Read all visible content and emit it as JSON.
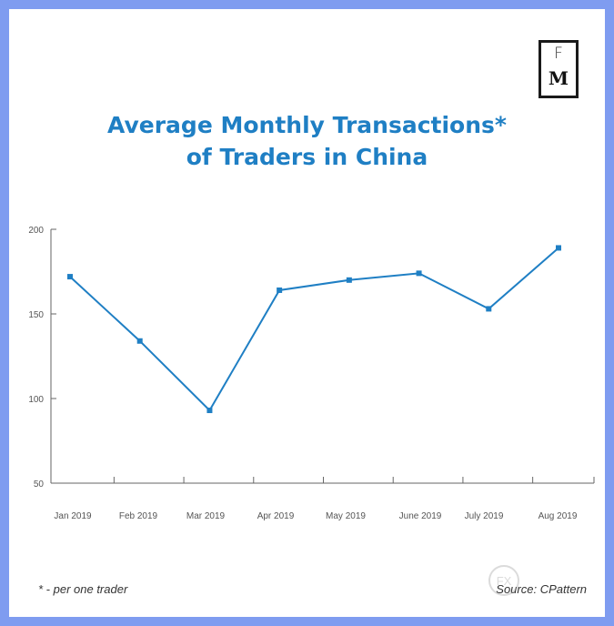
{
  "logo": {
    "top": "F",
    "bottom": "M"
  },
  "title_line1": "Average Monthly Transactions*",
  "title_line2": "of Traders in China",
  "footnote": "* - per one trader",
  "source": "Source: CPattern",
  "watermark": "FX",
  "colors": {
    "line": "#1f7fc4",
    "border": "#7f9cf0",
    "axis": "#666666"
  },
  "chart_data": {
    "type": "line",
    "title": "Average Monthly Transactions* of Traders in China",
    "categories": [
      "Jan 2019",
      "Feb 2019",
      "Mar 2019",
      "Apr 2019",
      "May 2019",
      "June 2019",
      "July 2019",
      "Aug 2019"
    ],
    "series": [
      {
        "values": [
          172,
          134,
          93,
          164,
          170,
          174,
          153,
          189
        ]
      }
    ],
    "ylim": [
      50,
      200
    ],
    "yticks": [
      "200",
      "150",
      "100",
      "50"
    ],
    "xlabel": "",
    "ylabel": "",
    "grid": false
  }
}
